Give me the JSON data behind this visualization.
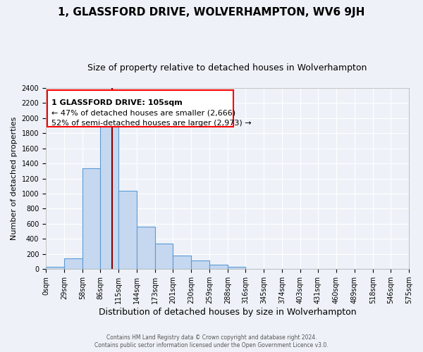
{
  "title": "1, GLASSFORD DRIVE, WOLVERHAMPTON, WV6 9JH",
  "subtitle": "Size of property relative to detached houses in Wolverhampton",
  "xlabel": "Distribution of detached houses by size in Wolverhampton",
  "ylabel": "Number of detached properties",
  "bar_values": [
    30,
    140,
    1340,
    1890,
    1040,
    560,
    340,
    175,
    110,
    60,
    30,
    5,
    5,
    5,
    5,
    5,
    5,
    5,
    5,
    5
  ],
  "bin_edges": [
    0,
    29,
    58,
    86,
    115,
    144,
    173,
    201,
    230,
    259,
    288,
    316,
    345,
    374,
    403,
    431,
    460,
    489,
    518,
    546,
    575
  ],
  "tick_labels": [
    "0sqm",
    "29sqm",
    "58sqm",
    "86sqm",
    "115sqm",
    "144sqm",
    "173sqm",
    "201sqm",
    "230sqm",
    "259sqm",
    "288sqm",
    "316sqm",
    "345sqm",
    "374sqm",
    "403sqm",
    "431sqm",
    "460sqm",
    "489sqm",
    "518sqm",
    "546sqm",
    "575sqm"
  ],
  "bar_color": "#c5d8f0",
  "bar_edge_color": "#5b9bd5",
  "vline_x": 105,
  "vline_color": "#8b0000",
  "ylim": [
    0,
    2400
  ],
  "yticks": [
    0,
    200,
    400,
    600,
    800,
    1000,
    1200,
    1400,
    1600,
    1800,
    2000,
    2200,
    2400
  ],
  "annotation_title": "1 GLASSFORD DRIVE: 105sqm",
  "annotation_line1": "← 47% of detached houses are smaller (2,666)",
  "annotation_line2": "52% of semi-detached houses are larger (2,973) →",
  "footer_line1": "Contains HM Land Registry data © Crown copyright and database right 2024.",
  "footer_line2": "Contains public sector information licensed under the Open Government Licence v3.0.",
  "background_color": "#eef2f8",
  "grid_color": "#ffffff",
  "title_fontsize": 11,
  "subtitle_fontsize": 9,
  "ylabel_fontsize": 8,
  "xlabel_fontsize": 9,
  "tick_fontsize": 7,
  "annotation_fontsize": 8
}
